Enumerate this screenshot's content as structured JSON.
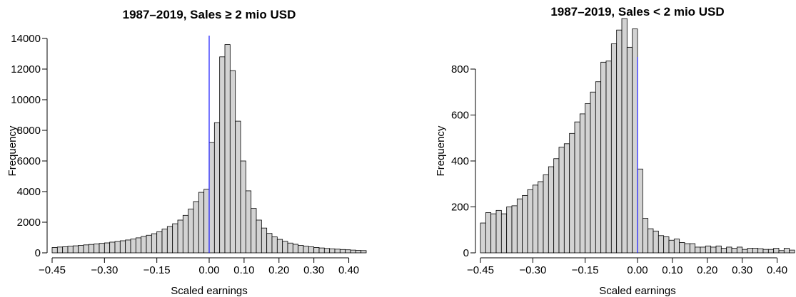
{
  "chart_data": [
    {
      "type": "bar",
      "title": "1987–2019, Sales ≥ 2 mio USD",
      "xlabel": "Scaled earnings",
      "ylabel": "Frequency",
      "xlim": [
        -0.45,
        0.45
      ],
      "ylim": [
        0,
        14000
      ],
      "bin_width": 0.015,
      "bin_start": -0.45,
      "x_ticks": [
        "−0.45",
        "−0.30",
        "−0.15",
        "0.00",
        "0.10",
        "0.20",
        "0.30",
        "0.40"
      ],
      "x_tick_values": [
        -0.45,
        -0.3,
        -0.15,
        0.0,
        0.1,
        0.2,
        0.3,
        0.4
      ],
      "y_ticks": [
        "0",
        "2000",
        "4000",
        "6000",
        "8000",
        "10000",
        "12000",
        "14000"
      ],
      "y_tick_values": [
        0,
        2000,
        4000,
        6000,
        8000,
        10000,
        12000,
        14000
      ],
      "vline_x": 0.0,
      "values": [
        350,
        380,
        400,
        430,
        460,
        490,
        520,
        550,
        580,
        620,
        650,
        700,
        740,
        790,
        840,
        900,
        980,
        1070,
        1150,
        1250,
        1380,
        1550,
        1720,
        1900,
        2140,
        2450,
        2860,
        3350,
        3950,
        4150,
        7200,
        8500,
        12800,
        13600,
        11900,
        8600,
        6000,
        4050,
        2900,
        2140,
        1620,
        1270,
        1040,
        880,
        750,
        640,
        560,
        490,
        430,
        390,
        350,
        320,
        290,
        260,
        240,
        220,
        200,
        180,
        160,
        150
      ]
    },
    {
      "type": "bar",
      "title": "1987–2019, Sales < 2 mio USD",
      "xlabel": "Scaled earnings",
      "ylabel": "Frequency",
      "xlim": [
        -0.45,
        0.45
      ],
      "ylim": [
        0,
        900
      ],
      "bin_width": 0.015,
      "bin_start": -0.45,
      "x_ticks": [
        "−0.45",
        "−0.30",
        "−0.15",
        "0.00",
        "0.10",
        "0.20",
        "0.30",
        "0.40"
      ],
      "x_tick_values": [
        -0.45,
        -0.3,
        -0.15,
        0.0,
        0.1,
        0.2,
        0.3,
        0.4
      ],
      "y_ticks": [
        "0",
        "200",
        "400",
        "600",
        "800"
      ],
      "y_tick_values": [
        0,
        200,
        400,
        600,
        800
      ],
      "vline_x": 0.0,
      "values": [
        130,
        175,
        170,
        185,
        170,
        200,
        205,
        235,
        250,
        275,
        295,
        310,
        340,
        375,
        410,
        460,
        475,
        520,
        570,
        605,
        650,
        700,
        745,
        830,
        835,
        910,
        970,
        1020,
        895,
        975,
        365,
        150,
        105,
        95,
        75,
        70,
        55,
        60,
        45,
        40,
        40,
        25,
        25,
        30,
        25,
        30,
        20,
        25,
        20,
        25,
        15,
        20,
        20,
        18,
        15,
        15,
        20,
        10,
        20,
        12
      ]
    }
  ]
}
